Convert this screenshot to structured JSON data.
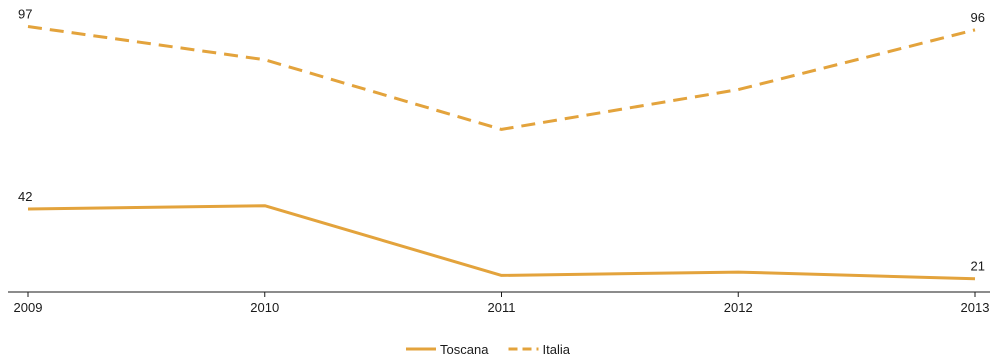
{
  "chart_data": {
    "type": "line",
    "x": [
      "2009",
      "2010",
      "2011",
      "2012",
      "2013"
    ],
    "series": [
      {
        "name": "Toscana",
        "values": [
          42,
          43,
          22,
          23,
          21
        ],
        "dash": false,
        "color": "#E3A33C",
        "end_labels": [
          "42",
          "21"
        ]
      },
      {
        "name": "Italia",
        "values": [
          97,
          87,
          66,
          78,
          96
        ],
        "dash": true,
        "color": "#E3A33C",
        "end_labels": [
          "97",
          "96"
        ]
      }
    ],
    "ylim": [
      17,
      105
    ],
    "title": "",
    "xlabel": "",
    "ylabel": "",
    "grid": false,
    "legend": "bottom-center"
  }
}
